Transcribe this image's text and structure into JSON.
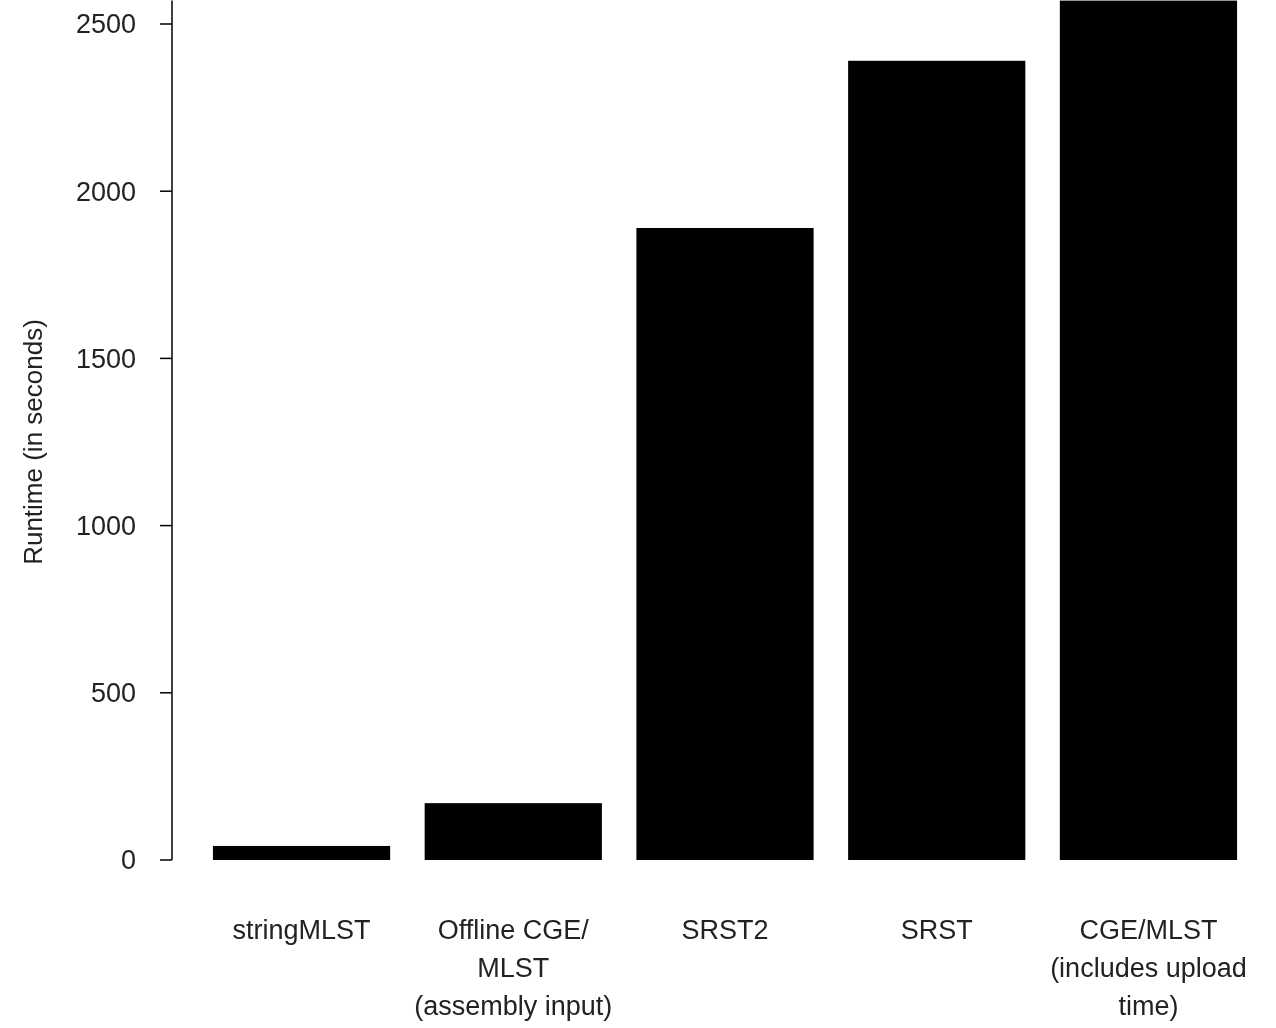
{
  "chart_data": {
    "type": "bar",
    "ylabel": "Runtime (in seconds)",
    "categories": [
      "stringMLST",
      "Offline CGE/\nMLST\n(assembly input)",
      "SRST2",
      "SRST",
      "CGE/MLST\n(includes upload\ntime)"
    ],
    "values": [
      42,
      170,
      1890,
      2390,
      2570
    ],
    "color": "#000000",
    "ylim": [
      0,
      2570
    ],
    "yticks": [
      0,
      500,
      1000,
      1500,
      2000,
      2500
    ],
    "grid": false
  }
}
